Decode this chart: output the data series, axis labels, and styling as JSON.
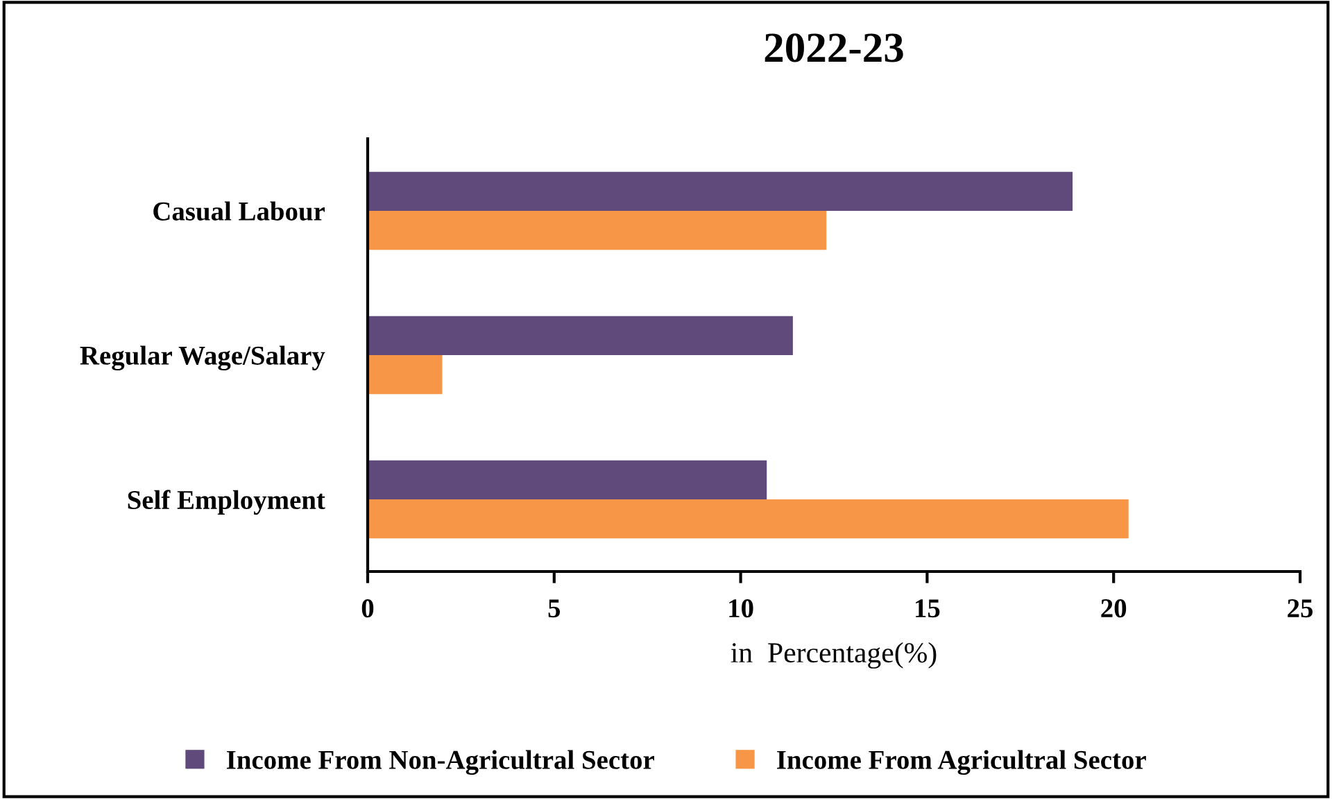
{
  "chart_data": {
    "type": "bar",
    "orientation": "horizontal",
    "title": "2022-23",
    "xlabel": "in  Percentage(%)",
    "categories": [
      "Casual Labour",
      "Regular Wage/Salary",
      "Self Employment"
    ],
    "series": [
      {
        "name": "Income From Non-Agricultral Sector",
        "color": "#604a7b",
        "values": [
          18.9,
          11.4,
          10.7
        ]
      },
      {
        "name": "Income From Agricultral Sector",
        "color": "#f79646",
        "values": [
          12.3,
          2.0,
          20.4
        ]
      }
    ],
    "xlim": [
      0,
      25
    ],
    "xticks": [
      0,
      5,
      10,
      15,
      20,
      25
    ],
    "grid": false,
    "legend": "bottom"
  }
}
